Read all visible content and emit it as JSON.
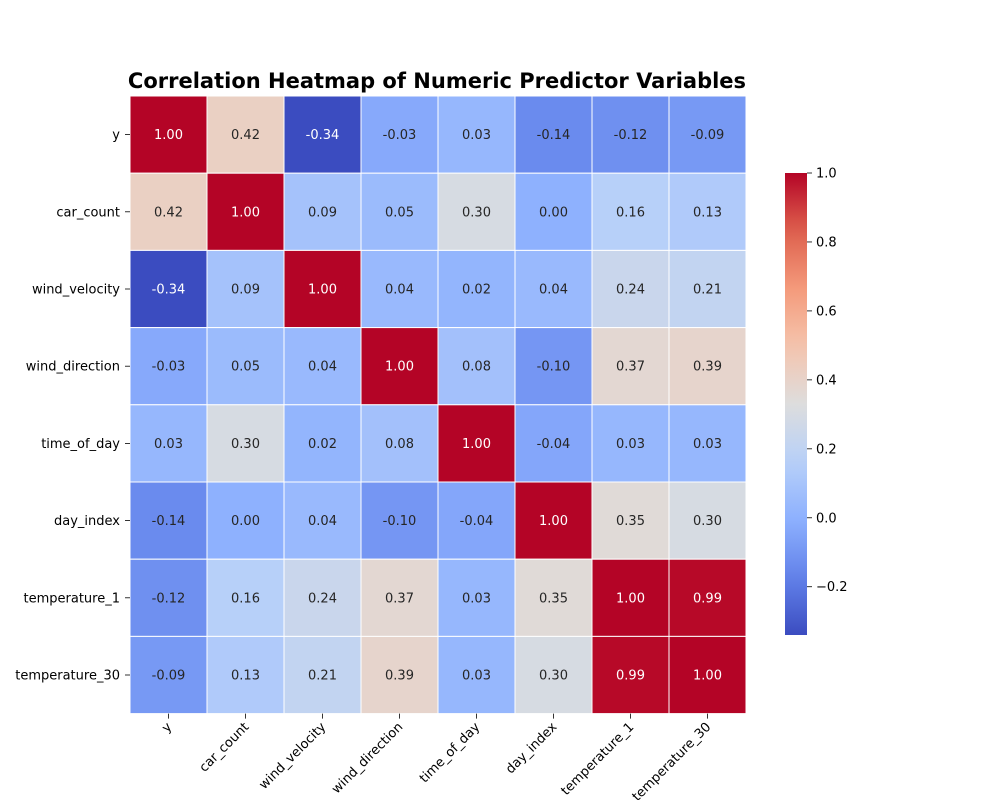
{
  "chart_data": {
    "type": "heatmap",
    "title": "Correlation Heatmap of Numeric Predictor Variables",
    "row_labels": [
      "y",
      "car_count",
      "wind_velocity",
      "wind_direction",
      "time_of_day",
      "day_index",
      "temperature_1",
      "temperature_30"
    ],
    "col_labels": [
      "y",
      "car_count",
      "wind_velocity",
      "wind_direction",
      "time_of_day",
      "day_index",
      "temperature_1",
      "temperature_30"
    ],
    "values": [
      [
        1.0,
        0.42,
        -0.34,
        -0.03,
        0.03,
        -0.14,
        -0.12,
        -0.09
      ],
      [
        0.42,
        1.0,
        0.09,
        0.05,
        0.3,
        0.0,
        0.16,
        0.13
      ],
      [
        -0.34,
        0.09,
        1.0,
        0.04,
        0.02,
        0.04,
        0.24,
        0.21
      ],
      [
        -0.03,
        0.05,
        0.04,
        1.0,
        0.08,
        -0.1,
        0.37,
        0.39
      ],
      [
        0.03,
        0.3,
        0.02,
        0.08,
        1.0,
        -0.04,
        0.03,
        0.03
      ],
      [
        -0.14,
        0.0,
        0.04,
        -0.1,
        -0.04,
        1.0,
        0.35,
        0.3
      ],
      [
        -0.12,
        0.16,
        0.24,
        0.37,
        0.03,
        0.35,
        1.0,
        0.99
      ],
      [
        -0.09,
        0.13,
        0.21,
        0.39,
        0.03,
        0.3,
        0.99,
        1.0
      ]
    ],
    "value_format": "0.00",
    "colormap": "coolwarm",
    "vmin": -0.34,
    "vmax": 1.0,
    "colorbar_ticks": [
      "1.0",
      "0.8",
      "0.6",
      "0.4",
      "0.2",
      "0.0",
      "−0.2"
    ],
    "colorbar_tick_values": [
      1.0,
      0.8,
      0.6,
      0.4,
      0.2,
      0.0,
      -0.2
    ],
    "x_tick_rotation_deg": 45,
    "grid": true,
    "colorbar_position": "right"
  }
}
